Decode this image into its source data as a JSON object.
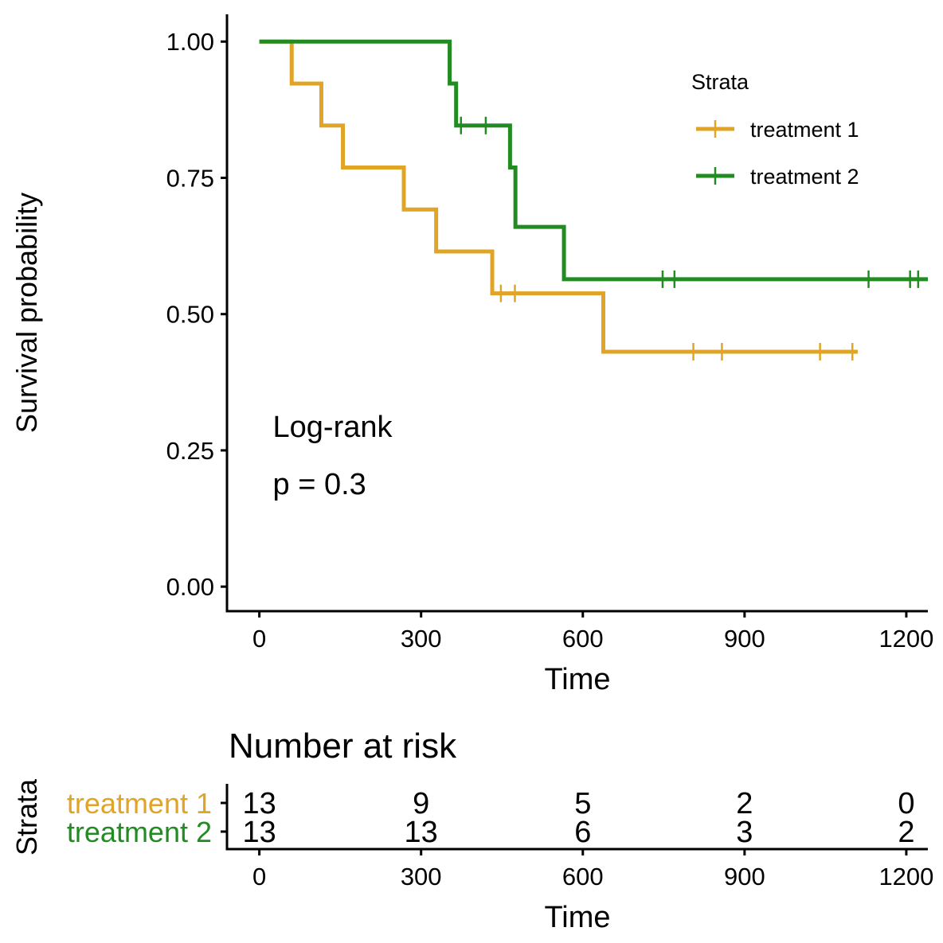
{
  "chart_data": [
    {
      "type": "line",
      "subtype": "kaplan-meier",
      "xlabel": "Time",
      "ylabel": "Survival probability",
      "xlim": [
        -60,
        1240
      ],
      "ylim": [
        -0.045,
        1.05
      ],
      "x_ticks": [
        0,
        300,
        600,
        900,
        1200
      ],
      "x_tick_labels": [
        "0",
        "300",
        "600",
        "900",
        "1200"
      ],
      "y_ticks": [
        0,
        0.25,
        0.5,
        0.75,
        1
      ],
      "y_tick_labels": [
        "0.00",
        "0.25",
        "0.50",
        "0.75",
        "1.00"
      ],
      "grid": false,
      "legend_title": "Strata",
      "legend_position": "top-right",
      "annotation": {
        "line1": "Log-rank",
        "line2": "p = 0.3",
        "anchor_x": 25,
        "anchor_y1": 0.295,
        "anchor_y2": 0.19
      },
      "series": [
        {
          "name": "treatment 1",
          "color": "#E0A426",
          "steps": [
            [
              0,
              1.0
            ],
            [
              60,
              0.923
            ],
            [
              115,
              0.846
            ],
            [
              155,
              0.769
            ],
            [
              268,
              0.692
            ],
            [
              328,
              0.615
            ],
            [
              432,
              0.538
            ],
            [
              638,
              0.431
            ]
          ],
          "end": 1110,
          "censor": [
            448,
            474,
            805,
            858,
            1040,
            1100
          ]
        },
        {
          "name": "treatment 2",
          "color": "#228B22",
          "steps": [
            [
              0,
              1.0
            ],
            [
              353,
              0.923
            ],
            [
              365,
              0.846
            ],
            [
              465,
              0.769
            ],
            [
              475,
              0.66
            ],
            [
              565,
              0.564
            ]
          ],
          "end": 1240,
          "censor": [
            374,
            420,
            748,
            770,
            1130,
            1207,
            1222
          ]
        }
      ]
    },
    {
      "type": "table",
      "title": "Number at risk",
      "ylabel": "Strata",
      "xlabel": "Time",
      "xlim": [
        -60,
        1240
      ],
      "x_ticks": [
        0,
        300,
        600,
        900,
        1200
      ],
      "x_tick_labels": [
        "0",
        "300",
        "600",
        "900",
        "1200"
      ],
      "rows": [
        {
          "name": "treatment 1",
          "color": "#E0A426",
          "values": [
            "13",
            "9",
            "5",
            "2",
            "0"
          ]
        },
        {
          "name": "treatment 2",
          "color": "#228B22",
          "values": [
            "13",
            "13",
            "6",
            "3",
            "2"
          ]
        }
      ]
    }
  ]
}
